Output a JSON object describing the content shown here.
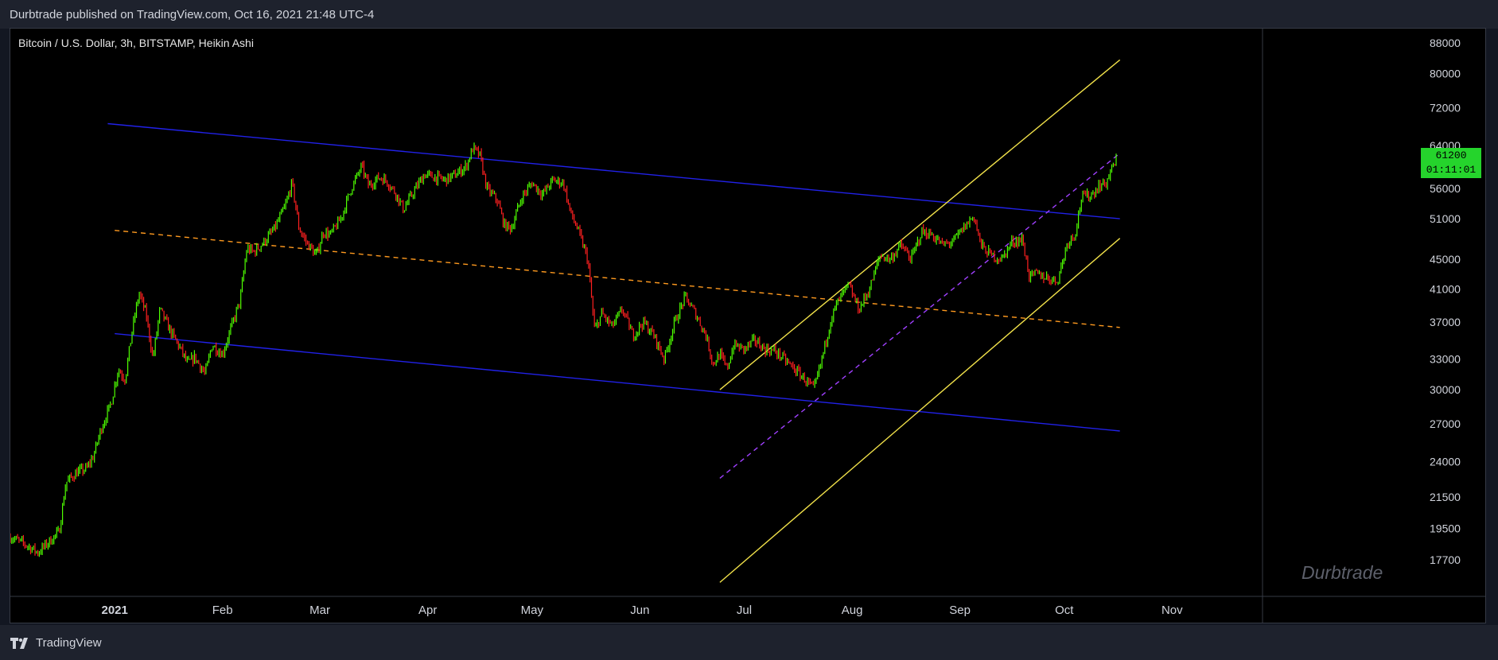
{
  "header": {
    "published": "Durbtrade published on TradingView.com, Oct 16, 2021 21:48 UTC-4"
  },
  "footer": {
    "brand": "TradingView"
  },
  "watermark": "Durbtrade",
  "price_badge": {
    "price": "61200",
    "countdown": "01:11:01",
    "color": "#25d42c"
  },
  "colors": {
    "up": "#4eff00",
    "down": "#ff2020",
    "channel": "#2121e8",
    "midline": "#ff9a1f",
    "rising_channel": "#f2e24a",
    "dashed_purple": "#a040ff",
    "price_badge": "#25d42c"
  },
  "chart_data": {
    "type": "candlestick",
    "title": "Bitcoin / U.S. Dollar, 3h, BITSTAMP, Heikin Ashi",
    "symbol": "Bitcoin / U.S. Dollar",
    "interval": "3h",
    "exchange": "BITSTAMP",
    "candle_style": "Heikin Ashi",
    "y_scale": "log",
    "ylim": [
      15800,
      92000
    ],
    "xlim": [
      "2020-12-02",
      "2021-11-27"
    ],
    "x_ticks": [
      {
        "label": "2021",
        "date": "2021-01-01"
      },
      {
        "label": "Feb",
        "date": "2021-02-01"
      },
      {
        "label": "Mar",
        "date": "2021-03-01"
      },
      {
        "label": "Apr",
        "date": "2021-04-01"
      },
      {
        "label": "May",
        "date": "2021-05-01"
      },
      {
        "label": "Jun",
        "date": "2021-06-01"
      },
      {
        "label": "Jul",
        "date": "2021-07-01"
      },
      {
        "label": "Aug",
        "date": "2021-08-01"
      },
      {
        "label": "Sep",
        "date": "2021-09-01"
      },
      {
        "label": "Oct",
        "date": "2021-10-01"
      },
      {
        "label": "Nov",
        "date": "2021-11-01"
      }
    ],
    "y_ticks": [
      88000,
      80000,
      72000,
      64000,
      56000,
      51000,
      45000,
      41000,
      37000,
      33000,
      30000,
      27000,
      24000,
      21500,
      19500,
      17700
    ],
    "price_path": [
      [
        "2020-12-02",
        19000
      ],
      [
        "2020-12-06",
        18600
      ],
      [
        "2020-12-10",
        18100
      ],
      [
        "2020-12-13",
        18700
      ],
      [
        "2020-12-16",
        19300
      ],
      [
        "2020-12-18",
        22500
      ],
      [
        "2020-12-21",
        23200
      ],
      [
        "2020-12-24",
        23500
      ],
      [
        "2020-12-26",
        24500
      ],
      [
        "2020-12-28",
        26500
      ],
      [
        "2020-12-31",
        28800
      ],
      [
        "2021-01-02",
        32000
      ],
      [
        "2021-01-04",
        31000
      ],
      [
        "2021-01-06",
        36000
      ],
      [
        "2021-01-08",
        40500
      ],
      [
        "2021-01-10",
        38000
      ],
      [
        "2021-01-12",
        33000
      ],
      [
        "2021-01-14",
        38500
      ],
      [
        "2021-01-17",
        36000
      ],
      [
        "2021-01-20",
        34000
      ],
      [
        "2021-01-22",
        32500
      ],
      [
        "2021-01-24",
        33200
      ],
      [
        "2021-01-27",
        31500
      ],
      [
        "2021-01-29",
        34500
      ],
      [
        "2021-02-01",
        33500
      ],
      [
        "2021-02-04",
        37000
      ],
      [
        "2021-02-06",
        39500
      ],
      [
        "2021-02-08",
        46500
      ],
      [
        "2021-02-10",
        46000
      ],
      [
        "2021-02-13",
        47500
      ],
      [
        "2021-02-16",
        49500
      ],
      [
        "2021-02-19",
        53000
      ],
      [
        "2021-02-21",
        57000
      ],
      [
        "2021-02-23",
        49500
      ],
      [
        "2021-02-25",
        47500
      ],
      [
        "2021-02-28",
        45500
      ],
      [
        "2021-03-02",
        49000
      ],
      [
        "2021-03-04",
        48500
      ],
      [
        "2021-03-07",
        51000
      ],
      [
        "2021-03-10",
        56000
      ],
      [
        "2021-03-13",
        60000
      ],
      [
        "2021-03-15",
        56500
      ],
      [
        "2021-03-18",
        58000
      ],
      [
        "2021-03-20",
        57500
      ],
      [
        "2021-03-23",
        55000
      ],
      [
        "2021-03-25",
        52500
      ],
      [
        "2021-03-28",
        55500
      ],
      [
        "2021-03-31",
        58500
      ],
      [
        "2021-04-03",
        58000
      ],
      [
        "2021-04-06",
        57500
      ],
      [
        "2021-04-09",
        58500
      ],
      [
        "2021-04-12",
        60000
      ],
      [
        "2021-04-14",
        63500
      ],
      [
        "2021-04-16",
        62000
      ],
      [
        "2021-04-18",
        56000
      ],
      [
        "2021-04-21",
        54000
      ],
      [
        "2021-04-23",
        50000
      ],
      [
        "2021-04-25",
        49500
      ],
      [
        "2021-04-28",
        54500
      ],
      [
        "2021-05-01",
        57000
      ],
      [
        "2021-05-04",
        55000
      ],
      [
        "2021-05-07",
        57500
      ],
      [
        "2021-05-10",
        57000
      ],
      [
        "2021-05-12",
        52000
      ],
      [
        "2021-05-14",
        49500
      ],
      [
        "2021-05-17",
        45000
      ],
      [
        "2021-05-19",
        36000
      ],
      [
        "2021-05-21",
        38000
      ],
      [
        "2021-05-24",
        36500
      ],
      [
        "2021-05-27",
        38500
      ],
      [
        "2021-05-30",
        35500
      ],
      [
        "2021-06-02",
        37000
      ],
      [
        "2021-06-05",
        35500
      ],
      [
        "2021-06-08",
        33000
      ],
      [
        "2021-06-11",
        37000
      ],
      [
        "2021-06-14",
        40000
      ],
      [
        "2021-06-17",
        38000
      ],
      [
        "2021-06-20",
        35500
      ],
      [
        "2021-06-22",
        32500
      ],
      [
        "2021-06-24",
        33500
      ],
      [
        "2021-06-26",
        32000
      ],
      [
        "2021-06-28",
        34500
      ],
      [
        "2021-07-01",
        34000
      ],
      [
        "2021-07-04",
        35000
      ],
      [
        "2021-07-07",
        34000
      ],
      [
        "2021-07-10",
        33800
      ],
      [
        "2021-07-13",
        32800
      ],
      [
        "2021-07-16",
        31800
      ],
      [
        "2021-07-19",
        30800
      ],
      [
        "2021-07-21",
        30000
      ],
      [
        "2021-07-23",
        32500
      ],
      [
        "2021-07-26",
        37500
      ],
      [
        "2021-07-28",
        39500
      ],
      [
        "2021-07-31",
        41500
      ],
      [
        "2021-08-03",
        38500
      ],
      [
        "2021-08-06",
        41000
      ],
      [
        "2021-08-09",
        45500
      ],
      [
        "2021-08-12",
        45000
      ],
      [
        "2021-08-15",
        47000
      ],
      [
        "2021-08-18",
        45000
      ],
      [
        "2021-08-21",
        49000
      ],
      [
        "2021-08-24",
        48500
      ],
      [
        "2021-08-27",
        47000
      ],
      [
        "2021-08-30",
        47500
      ],
      [
        "2021-09-02",
        49500
      ],
      [
        "2021-09-05",
        51500
      ],
      [
        "2021-09-07",
        47000
      ],
      [
        "2021-09-10",
        45500
      ],
      [
        "2021-09-13",
        45000
      ],
      [
        "2021-09-16",
        47500
      ],
      [
        "2021-09-19",
        47800
      ],
      [
        "2021-09-21",
        42500
      ],
      [
        "2021-09-23",
        43000
      ],
      [
        "2021-09-26",
        42500
      ],
      [
        "2021-09-29",
        42000
      ],
      [
        "2021-10-02",
        47500
      ],
      [
        "2021-10-04",
        48500
      ],
      [
        "2021-10-06",
        54500
      ],
      [
        "2021-10-09",
        55000
      ],
      [
        "2021-10-11",
        56500
      ],
      [
        "2021-10-13",
        57000
      ],
      [
        "2021-10-15",
        60000
      ],
      [
        "2021-10-16",
        61200
      ]
    ],
    "drawings": [
      {
        "name": "channel-upper",
        "style": "solid",
        "color": "#2121e8",
        "from": [
          "2020-12-30",
          68500
        ],
        "to": [
          "2021-10-17",
          51000
        ]
      },
      {
        "name": "channel-lower",
        "style": "solid",
        "color": "#2121e8",
        "from": [
          "2021-01-01",
          35700
        ],
        "to": [
          "2021-10-17",
          26400
        ]
      },
      {
        "name": "channel-midline",
        "style": "dashed",
        "color": "#ff9a1f",
        "from": [
          "2021-01-01",
          49200
        ],
        "to": [
          "2021-10-17",
          36400
        ]
      },
      {
        "name": "rising-upper",
        "style": "solid",
        "color": "#f2e24a",
        "from": [
          "2021-06-24",
          30000
        ],
        "to": [
          "2021-10-17",
          83500
        ]
      },
      {
        "name": "rising-lower",
        "style": "solid",
        "color": "#f2e24a",
        "from": [
          "2021-06-24",
          16500
        ],
        "to": [
          "2021-10-17",
          48000
        ]
      },
      {
        "name": "rising-dashed",
        "style": "dashed",
        "color": "#a040ff",
        "from": [
          "2021-06-24",
          22800
        ],
        "to": [
          "2021-10-17",
          62500
        ]
      }
    ]
  }
}
